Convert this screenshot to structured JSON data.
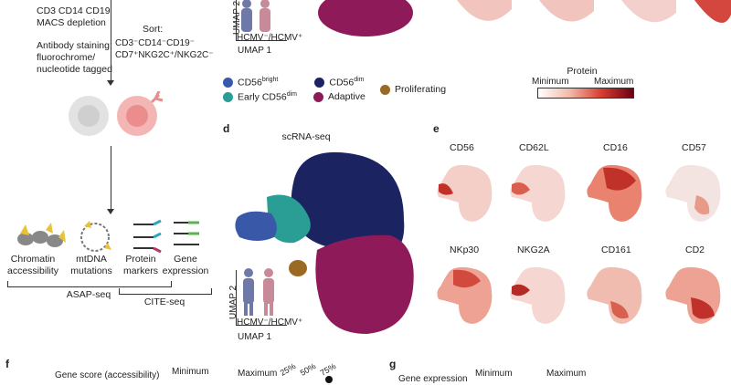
{
  "panel_c": {
    "workflow": {
      "depletion": "CD3 CD14 CD19\nMACS depletion",
      "staining": "Antibody staining:\nfluorochrome/\nnucleotide tagged",
      "sort_label": "Sort:",
      "sort_gate_1": "CD3⁻CD14⁻CD19⁻",
      "sort_gate_2": "CD7⁺NKG2C⁺/NKG2C⁻",
      "assays": [
        "Chromatin\naccessibility",
        "mtDNA\nmutations",
        "Protein\nmarkers",
        "Gene\nexpression"
      ],
      "group_asap": "ASAP-seq",
      "group_cite": "CITE-seq"
    },
    "umap": {
      "y_axis": "UMAP 2",
      "x_axis": "UMAP 1",
      "donors": "HCMV⁻/HCMV⁺"
    }
  },
  "legend": {
    "items": [
      {
        "label": "CD56",
        "sup": "bright",
        "color": "#3a58a8"
      },
      {
        "label": "CD56",
        "sup": "dim",
        "color": "#1c2361"
      },
      {
        "label": "Early CD56",
        "sup": "dim",
        "color": "#2a9d94"
      },
      {
        "label": "Adaptive",
        "sup": "",
        "color": "#8e1a5a"
      },
      {
        "label": "Proliferating",
        "sup": "",
        "color": "#9a6a24"
      }
    ],
    "protein_title": "Protein",
    "protein_min": "Minimum",
    "protein_max": "Maximum"
  },
  "panel_d": {
    "letter": "d",
    "title": "scRNA-seq",
    "y_axis": "UMAP 2",
    "x_axis": "UMAP 1",
    "donors": "HCMV⁻/HCMV⁺"
  },
  "panel_e": {
    "letter": "e",
    "markers_row1": [
      "CD56",
      "CD62L",
      "CD16",
      "CD57"
    ],
    "markers_row2": [
      "NKp30",
      "NKG2A",
      "CD161",
      "CD2"
    ]
  },
  "panel_f": {
    "letter": "f",
    "score_label": "Gene score (accessibility)",
    "min": "Minimum",
    "max": "Maximum",
    "pct": [
      "25%",
      "50%",
      "75%"
    ]
  },
  "panel_g": {
    "letter": "g",
    "label": "Gene expression",
    "min": "Minimum",
    "max": "Maximum"
  }
}
